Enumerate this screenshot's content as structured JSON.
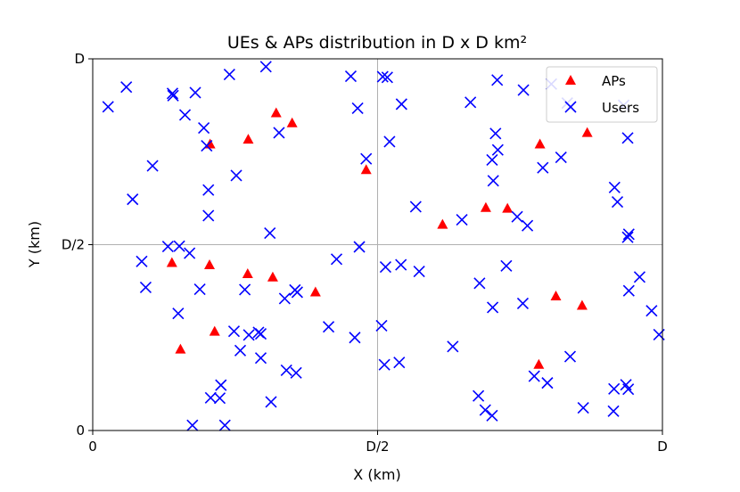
{
  "chart_data": {
    "type": "scatter",
    "title": "UEs & APs distribution in  D x D km²",
    "xlabel": "X (km)",
    "ylabel": "Y (km)",
    "xlim": [
      0,
      1
    ],
    "ylim": [
      0,
      1
    ],
    "xticks": [
      {
        "value": 0,
        "label": "0"
      },
      {
        "value": 0.5,
        "label": "D/2"
      },
      {
        "value": 1,
        "label": "D"
      }
    ],
    "yticks": [
      {
        "value": 0,
        "label": "0"
      },
      {
        "value": 0.5,
        "label": "D/2"
      },
      {
        "value": 1,
        "label": "D"
      }
    ],
    "grid": "center lines at D/2",
    "legend_position": "top-right",
    "series": [
      {
        "name": "APs",
        "marker": "triangle",
        "color": "#ff0000",
        "points": [
          [
            0.206,
            0.771
          ],
          [
            0.273,
            0.784
          ],
          [
            0.322,
            0.855
          ],
          [
            0.35,
            0.828
          ],
          [
            0.48,
            0.702
          ],
          [
            0.69,
            0.6
          ],
          [
            0.614,
            0.555
          ],
          [
            0.785,
            0.771
          ],
          [
            0.728,
            0.598
          ],
          [
            0.868,
            0.802
          ],
          [
            0.139,
            0.452
          ],
          [
            0.205,
            0.446
          ],
          [
            0.272,
            0.422
          ],
          [
            0.316,
            0.413
          ],
          [
            0.391,
            0.373
          ],
          [
            0.154,
            0.219
          ],
          [
            0.214,
            0.267
          ],
          [
            0.813,
            0.362
          ],
          [
            0.859,
            0.337
          ],
          [
            0.783,
            0.178
          ]
        ]
      },
      {
        "name": "Users",
        "marker": "x",
        "color": "#0000ff",
        "points": [
          [
            0.027,
            0.871
          ],
          [
            0.059,
            0.924
          ],
          [
            0.07,
            0.622
          ],
          [
            0.105,
            0.712
          ],
          [
            0.14,
            0.907
          ],
          [
            0.141,
            0.901
          ],
          [
            0.162,
            0.849
          ],
          [
            0.18,
            0.909
          ],
          [
            0.195,
            0.814
          ],
          [
            0.2,
            0.766
          ],
          [
            0.24,
            0.958
          ],
          [
            0.203,
            0.647
          ],
          [
            0.203,
            0.578
          ],
          [
            0.252,
            0.686
          ],
          [
            0.304,
            0.979
          ],
          [
            0.327,
            0.801
          ],
          [
            0.311,
            0.531
          ],
          [
            0.453,
            0.953
          ],
          [
            0.465,
            0.867
          ],
          [
            0.48,
            0.731
          ],
          [
            0.509,
            0.952
          ],
          [
            0.517,
            0.95
          ],
          [
            0.542,
            0.878
          ],
          [
            0.521,
            0.777
          ],
          [
            0.567,
            0.602
          ],
          [
            0.648,
            0.567
          ],
          [
            0.663,
            0.883
          ],
          [
            0.71,
            0.943
          ],
          [
            0.707,
            0.799
          ],
          [
            0.711,
            0.755
          ],
          [
            0.701,
            0.728
          ],
          [
            0.703,
            0.672
          ],
          [
            0.756,
            0.916
          ],
          [
            0.805,
            0.932
          ],
          [
            0.79,
            0.707
          ],
          [
            0.745,
            0.575
          ],
          [
            0.763,
            0.551
          ],
          [
            0.822,
            0.735
          ],
          [
            0.833,
            0.881
          ],
          [
            0.932,
            0.875
          ],
          [
            0.939,
            0.787
          ],
          [
            0.916,
            0.654
          ],
          [
            0.921,
            0.615
          ],
          [
            0.939,
            0.52
          ],
          [
            0.132,
            0.495
          ],
          [
            0.152,
            0.496
          ],
          [
            0.17,
            0.477
          ],
          [
            0.086,
            0.455
          ],
          [
            0.093,
            0.385
          ],
          [
            0.188,
            0.38
          ],
          [
            0.15,
            0.315
          ],
          [
            0.267,
            0.379
          ],
          [
            0.291,
            0.264
          ],
          [
            0.274,
            0.257
          ],
          [
            0.248,
            0.267
          ],
          [
            0.295,
            0.26
          ],
          [
            0.259,
            0.215
          ],
          [
            0.295,
            0.195
          ],
          [
            0.337,
            0.355
          ],
          [
            0.355,
            0.378
          ],
          [
            0.359,
            0.372
          ],
          [
            0.428,
            0.461
          ],
          [
            0.468,
            0.494
          ],
          [
            0.514,
            0.44
          ],
          [
            0.541,
            0.446
          ],
          [
            0.573,
            0.428
          ],
          [
            0.507,
            0.282
          ],
          [
            0.46,
            0.25
          ],
          [
            0.414,
            0.279
          ],
          [
            0.512,
            0.177
          ],
          [
            0.538,
            0.183
          ],
          [
            0.632,
            0.226
          ],
          [
            0.34,
            0.162
          ],
          [
            0.357,
            0.155
          ],
          [
            0.207,
            0.088
          ],
          [
            0.223,
            0.087
          ],
          [
            0.225,
            0.122
          ],
          [
            0.175,
            0.014
          ],
          [
            0.232,
            0.014
          ],
          [
            0.313,
            0.077
          ],
          [
            0.679,
            0.396
          ],
          [
            0.702,
            0.331
          ],
          [
            0.726,
            0.443
          ],
          [
            0.755,
            0.342
          ],
          [
            0.775,
            0.146
          ],
          [
            0.798,
            0.128
          ],
          [
            0.838,
            0.199
          ],
          [
            0.861,
            0.061
          ],
          [
            0.914,
            0.052
          ],
          [
            0.915,
            0.112
          ],
          [
            0.936,
            0.123
          ],
          [
            0.94,
            0.111
          ],
          [
            0.941,
            0.376
          ],
          [
            0.96,
            0.413
          ],
          [
            0.981,
            0.322
          ],
          [
            0.994,
            0.258
          ],
          [
            0.677,
            0.093
          ],
          [
            0.689,
            0.055
          ],
          [
            0.701,
            0.04
          ],
          [
            0.941,
            0.528
          ]
        ]
      }
    ]
  }
}
